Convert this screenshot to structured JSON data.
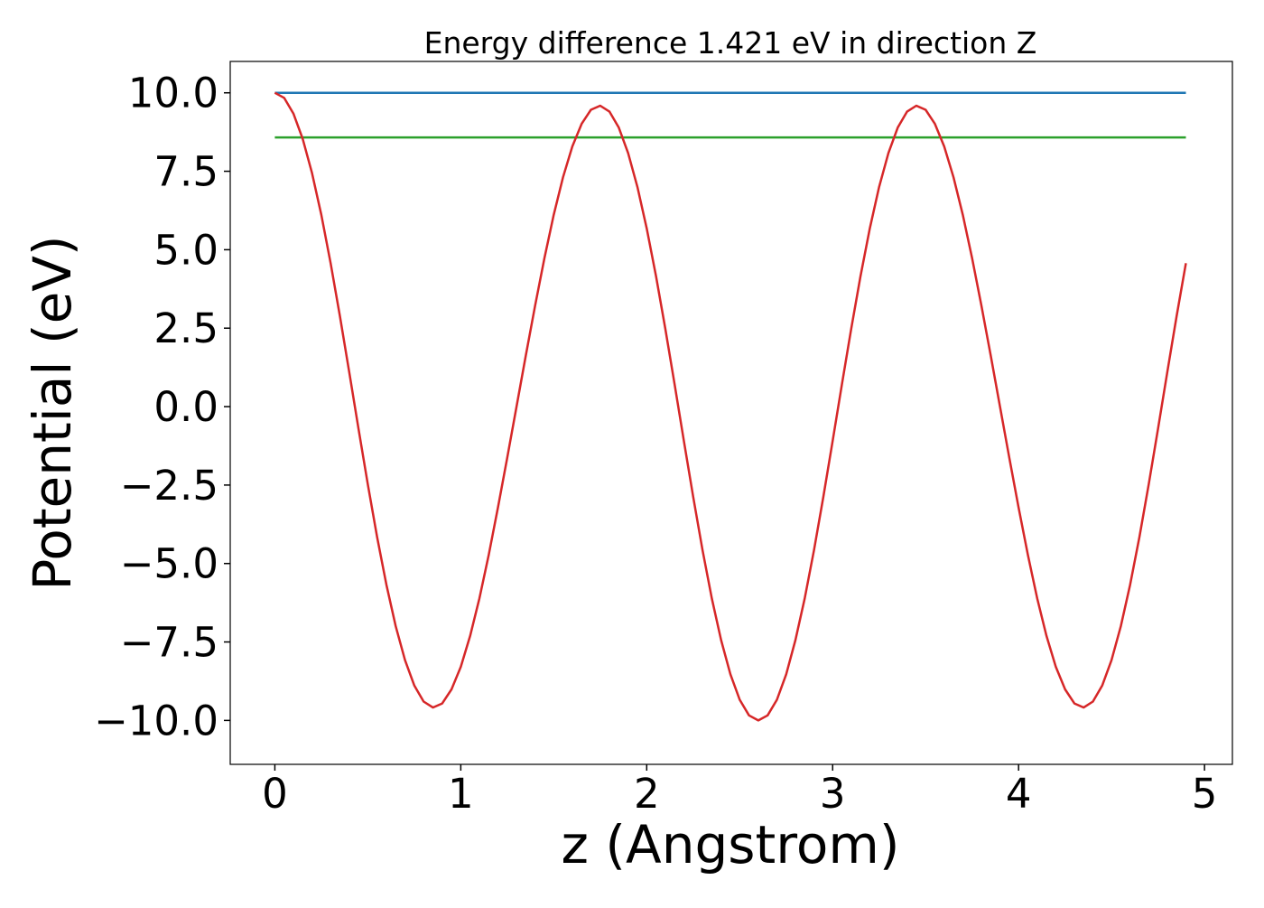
{
  "chart_data": {
    "type": "line",
    "title": "Energy difference 1.421 eV in direction Z",
    "xlabel": "z (Angstrom)",
    "ylabel": "Potential (eV)",
    "xlim": [
      -0.24,
      5.15
    ],
    "ylim": [
      -11.4,
      11.0
    ],
    "xticks": [
      0,
      1,
      2,
      3,
      4,
      5
    ],
    "xtick_labels": [
      "0",
      "1",
      "2",
      "3",
      "4",
      "5"
    ],
    "yticks": [
      10.0,
      7.5,
      5.0,
      2.5,
      0.0,
      -2.5,
      -5.0,
      -7.5,
      -10.0
    ],
    "ytick_labels": [
      "10.0",
      "7.5",
      "5.0",
      "2.5",
      "0.0",
      "−2.5",
      "−5.0",
      "−7.5",
      "−10.0"
    ],
    "grid": false,
    "legend": "none",
    "series": [
      {
        "color": "#1f77b4",
        "x": [
          0,
          4.9
        ],
        "y": [
          10.0,
          10.0
        ]
      },
      {
        "color": "#2ca02c",
        "x": [
          0,
          4.9
        ],
        "y": [
          8.58,
          8.58
        ]
      },
      {
        "color": "#d62728",
        "x": [
          0,
          0.05,
          0.1,
          0.15,
          0.2,
          0.25,
          0.3,
          0.35,
          0.4,
          0.45,
          0.5,
          0.55,
          0.6,
          0.65,
          0.7,
          0.75,
          0.8,
          0.85,
          0.9,
          0.95,
          1.0,
          1.05,
          1.1,
          1.15,
          1.2,
          1.25,
          1.3,
          1.35,
          1.4,
          1.45,
          1.5,
          1.55,
          1.6,
          1.65,
          1.7,
          1.75,
          1.8,
          1.85,
          1.9,
          1.95,
          2.0,
          2.05,
          2.1,
          2.15,
          2.2,
          2.25,
          2.3,
          2.35,
          2.4,
          2.45,
          2.5,
          2.55,
          2.6,
          2.65,
          2.7,
          2.75,
          2.8,
          2.85,
          2.9,
          2.95,
          3.0,
          3.05,
          3.1,
          3.15,
          3.2,
          3.25,
          3.3,
          3.35,
          3.4,
          3.45,
          3.5,
          3.55,
          3.6,
          3.65,
          3.7,
          3.75,
          3.8,
          3.85,
          3.9,
          3.95,
          4.0,
          4.05,
          4.1,
          4.15,
          4.2,
          4.25,
          4.3,
          4.35,
          4.4,
          4.45,
          4.5,
          4.55,
          4.6,
          4.65,
          4.7,
          4.75,
          4.8,
          4.85,
          4.9
        ],
        "y": [
          10.0,
          9.84,
          9.34,
          8.53,
          7.44,
          6.11,
          4.57,
          2.88,
          1.1,
          -0.71,
          -2.48,
          -4.16,
          -5.68,
          -7.0,
          -8.08,
          -8.89,
          -9.4,
          -9.59,
          -9.46,
          -9.01,
          -8.29,
          -7.31,
          -6.11,
          -4.73,
          -3.22,
          -1.63,
          0.0,
          1.63,
          3.22,
          4.73,
          6.11,
          7.31,
          8.29,
          9.01,
          9.46,
          9.59,
          9.4,
          8.89,
          8.08,
          7.0,
          5.68,
          4.16,
          2.48,
          0.71,
          -1.1,
          -2.88,
          -4.57,
          -6.11,
          -7.44,
          -8.53,
          -9.34,
          -9.84,
          -10.0,
          -9.84,
          -9.34,
          -8.53,
          -7.44,
          -6.11,
          -4.57,
          -2.88,
          -1.1,
          0.71,
          2.48,
          4.16,
          5.68,
          7.0,
          8.08,
          8.89,
          9.4,
          9.59,
          9.46,
          9.01,
          8.29,
          7.31,
          6.11,
          4.73,
          3.22,
          1.63,
          0.0,
          -1.63,
          -3.22,
          -4.73,
          -6.11,
          -7.31,
          -8.29,
          -9.01,
          -9.46,
          -9.59,
          -9.4,
          -8.89,
          -8.08,
          -7.0,
          -5.68,
          -4.16,
          -2.48,
          -0.71,
          1.1,
          2.88,
          4.57
        ]
      }
    ]
  }
}
